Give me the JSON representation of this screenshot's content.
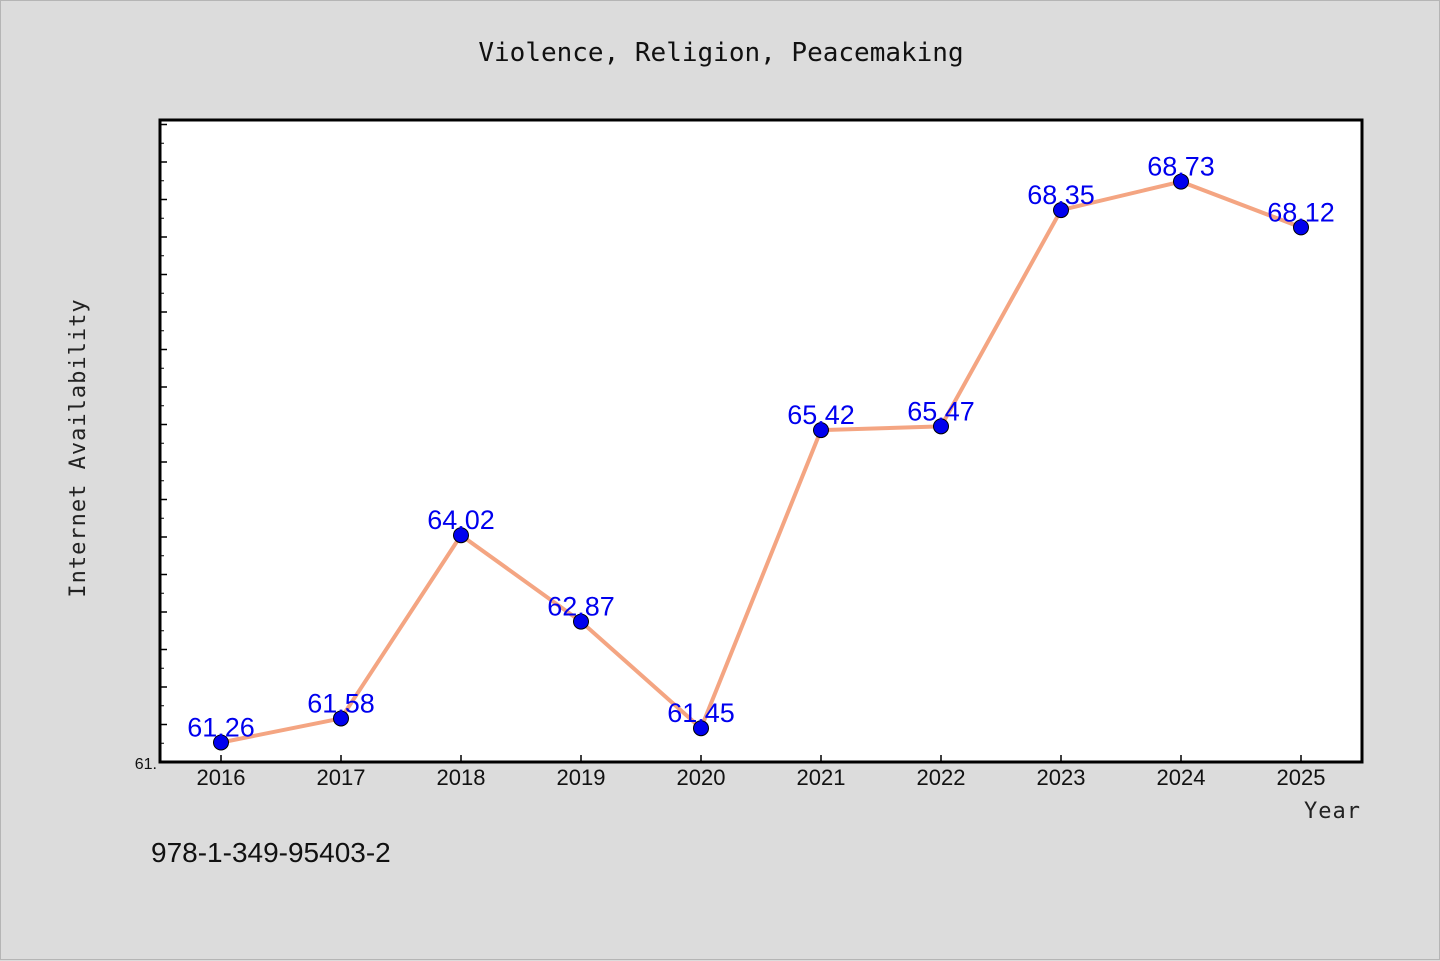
{
  "chart_data": {
    "type": "line",
    "title": "Violence, Religion, Peacemaking",
    "xlabel": "Year",
    "ylabel": "Internet Availability",
    "x": [
      "2016",
      "2017",
      "2018",
      "2019",
      "2020",
      "2021",
      "2022",
      "2023",
      "2024",
      "2025"
    ],
    "series": [
      {
        "values": [
          61.26,
          61.58,
          64.02,
          62.87,
          61.45,
          65.42,
          65.47,
          68.35,
          68.73,
          68.12
        ],
        "labels": [
          "61.26",
          "61.58",
          "64.02",
          "62.87",
          "61.45",
          "65.42",
          "65.47",
          "68.35",
          "68.73",
          "68.12"
        ],
        "line_color": "#f4a582",
        "marker_color": "#0000ee"
      }
    ],
    "ylim": [
      61.0,
      69.55
    ],
    "y_tick_labels": [
      "61."
    ],
    "grid": false,
    "legend": "none"
  },
  "footer": {
    "isbn": "978-1-349-95403-2"
  },
  "colors": {
    "background": "#dcdcdc",
    "plot_background": "#ffffff",
    "line": "#f4a582",
    "marker": "#0000ee",
    "data_label": "#0000ee"
  }
}
